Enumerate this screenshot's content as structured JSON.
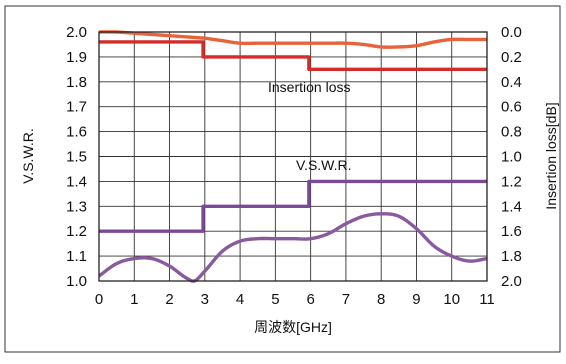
{
  "chart_data": {
    "type": "line",
    "x": {
      "label": "周波数[GHz]",
      "ticks": [
        "0",
        "1",
        "2",
        "3",
        "4",
        "5",
        "6",
        "7",
        "8",
        "9",
        "10",
        "11"
      ],
      "range": [
        0,
        11
      ]
    },
    "y_left": {
      "label": "V.S.W.R.",
      "ticks": [
        "2.0",
        "1.9",
        "1.8",
        "1.7",
        "1.6",
        "1.5",
        "1.4",
        "1.3",
        "1.2",
        "1.1",
        "1.0"
      ],
      "range": [
        1.0,
        2.0
      ]
    },
    "y_right": {
      "label": "Insertion loss[dB]",
      "ticks": [
        "0.0",
        "0.2",
        "0.4",
        "0.6",
        "0.8",
        "1.0",
        "1.2",
        "1.4",
        "1.6",
        "1.8",
        "2.0"
      ],
      "range": [
        0.0,
        2.0
      ],
      "inverted": true
    },
    "grid": true,
    "annotations": [
      {
        "text": "Insertion loss"
      },
      {
        "text": "V.S.W.R."
      }
    ],
    "series": [
      {
        "id": "il-measured",
        "axis": "right",
        "color": "#E8623A",
        "x": [
          0,
          0.5,
          1,
          1.5,
          2,
          2.5,
          3,
          3.5,
          4,
          4.5,
          5,
          5.5,
          6,
          6.5,
          7,
          7.5,
          8,
          8.5,
          9,
          9.5,
          10,
          10.5,
          11
        ],
        "y": [
          0.0,
          0.0,
          0.01,
          0.02,
          0.03,
          0.04,
          0.05,
          0.07,
          0.09,
          0.09,
          0.09,
          0.09,
          0.09,
          0.09,
          0.09,
          0.1,
          0.12,
          0.12,
          0.11,
          0.08,
          0.06,
          0.06,
          0.06
        ]
      },
      {
        "id": "il-spec",
        "axis": "right",
        "color": "#D42C28",
        "x": [
          0,
          2.95,
          2.95,
          5.95,
          5.95,
          11
        ],
        "y": [
          0.08,
          0.08,
          0.2,
          0.2,
          0.3,
          0.3
        ]
      },
      {
        "id": "vswr-spec",
        "axis": "left",
        "color": "#7B4A96",
        "x": [
          0,
          2.95,
          2.95,
          5.95,
          5.95,
          11
        ],
        "y": [
          1.2,
          1.2,
          1.3,
          1.3,
          1.4,
          1.4
        ]
      },
      {
        "id": "vswr-measured",
        "axis": "left",
        "color": "#8A5A9F",
        "x": [
          0,
          0.5,
          1,
          1.5,
          2,
          2.5,
          2.7,
          3,
          3.5,
          4,
          4.5,
          5,
          5.5,
          6,
          6.5,
          7,
          7.5,
          8,
          8.5,
          9,
          9.5,
          10,
          10.5,
          11
        ],
        "y": [
          1.02,
          1.07,
          1.09,
          1.09,
          1.06,
          1.01,
          1.0,
          1.04,
          1.12,
          1.16,
          1.17,
          1.17,
          1.17,
          1.17,
          1.19,
          1.23,
          1.26,
          1.27,
          1.26,
          1.21,
          1.14,
          1.1,
          1.08,
          1.09
        ]
      }
    ]
  }
}
